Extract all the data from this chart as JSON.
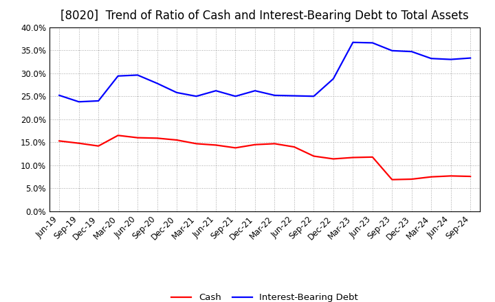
{
  "title": "[8020]  Trend of Ratio of Cash and Interest-Bearing Debt to Total Assets",
  "x_labels": [
    "Jun-19",
    "Sep-19",
    "Dec-19",
    "Mar-20",
    "Jun-20",
    "Sep-20",
    "Dec-20",
    "Mar-21",
    "Jun-21",
    "Sep-21",
    "Dec-21",
    "Mar-22",
    "Jun-22",
    "Sep-22",
    "Dec-22",
    "Mar-23",
    "Jun-23",
    "Sep-23",
    "Dec-23",
    "Mar-24",
    "Jun-24",
    "Sep-24"
  ],
  "cash": [
    15.3,
    14.8,
    14.2,
    16.5,
    16.0,
    15.9,
    15.5,
    14.7,
    14.4,
    13.8,
    14.5,
    14.7,
    14.0,
    12.0,
    11.4,
    11.7,
    11.8,
    6.9,
    7.0,
    7.5,
    7.7,
    7.6
  ],
  "ibd": [
    25.2,
    23.8,
    24.0,
    29.4,
    29.6,
    27.8,
    25.8,
    25.0,
    26.2,
    25.0,
    26.2,
    25.2,
    25.1,
    25.0,
    28.8,
    36.7,
    36.6,
    34.9,
    34.7,
    33.2,
    33.0,
    33.3
  ],
  "cash_color": "#ff0000",
  "ibd_color": "#0000ff",
  "background_color": "#ffffff",
  "plot_bg_color": "#ffffff",
  "grid_color": "#999999",
  "ylim": [
    0.0,
    40.0
  ],
  "ylabel_ticks": [
    0.0,
    5.0,
    10.0,
    15.0,
    20.0,
    25.0,
    30.0,
    35.0,
    40.0
  ],
  "legend_cash": "Cash",
  "legend_ibd": "Interest-Bearing Debt",
  "title_fontsize": 12,
  "tick_fontsize": 8.5,
  "legend_fontsize": 9.5,
  "line_width": 1.6
}
